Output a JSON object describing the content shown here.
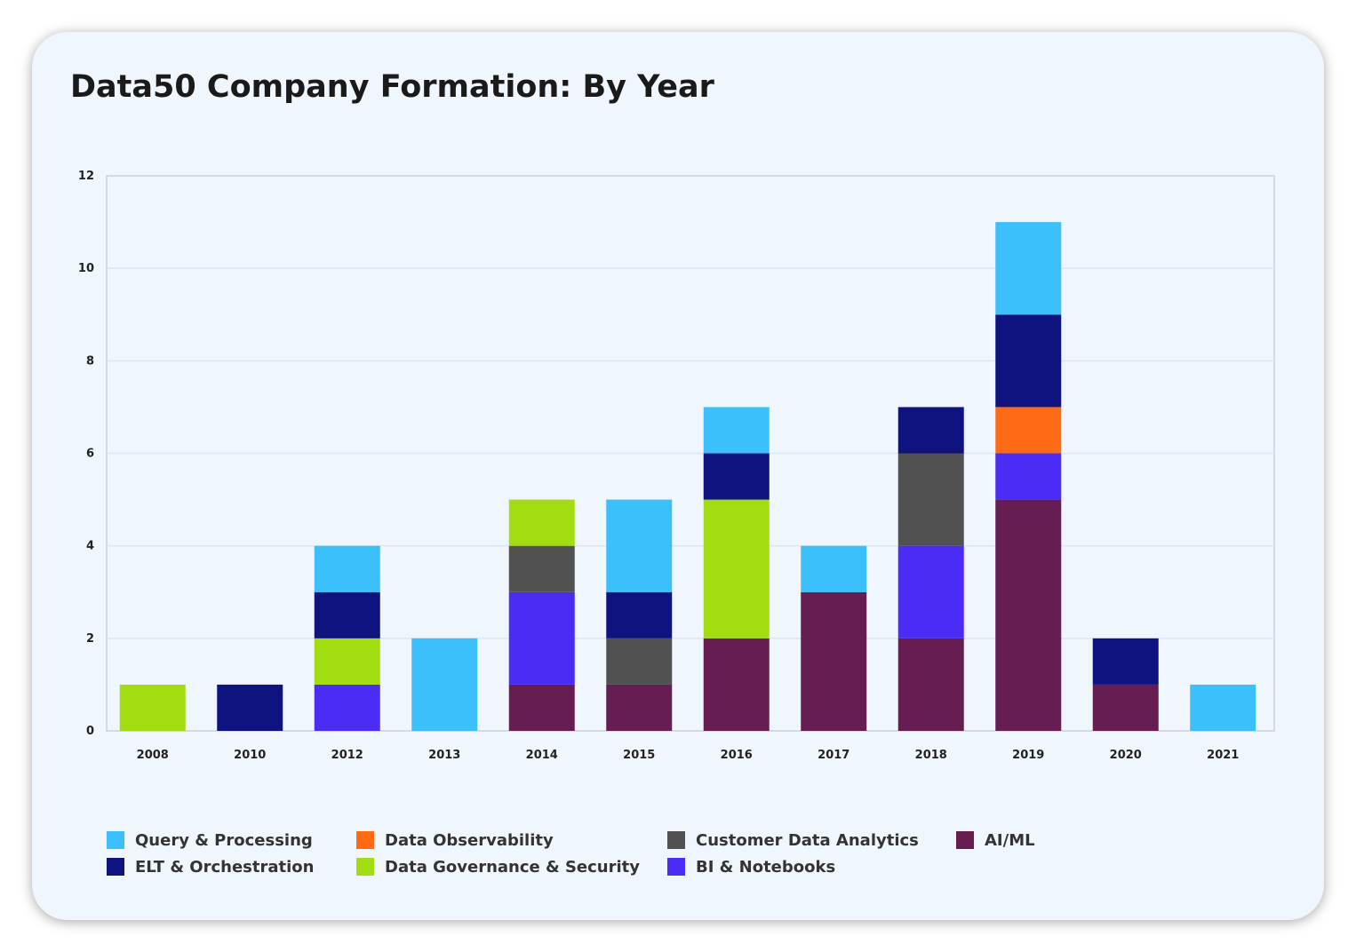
{
  "chart_data": {
    "type": "bar",
    "stacked": true,
    "title": "Data50 Company Formation: By Year",
    "xlabel": "",
    "ylabel": "",
    "ylim": [
      0,
      12
    ],
    "yticks": [
      0,
      2,
      4,
      6,
      8,
      10,
      12
    ],
    "grid": true,
    "legend_position": "bottom",
    "categories": [
      "2008",
      "2010",
      "2012",
      "2013",
      "2014",
      "2015",
      "2016",
      "2017",
      "2018",
      "2019",
      "2020",
      "2021"
    ],
    "series": [
      {
        "name": "AI/ML",
        "color": "#651d52",
        "values": [
          0,
          0,
          0,
          0,
          1,
          1,
          2,
          3,
          2,
          5,
          1,
          0
        ]
      },
      {
        "name": "BI & Notebooks",
        "color": "#4a2cf5",
        "values": [
          0,
          0,
          1,
          0,
          2,
          0,
          0,
          0,
          2,
          1,
          0,
          0
        ]
      },
      {
        "name": "Customer Data Analytics",
        "color": "#515151",
        "values": [
          0,
          0,
          0,
          0,
          1,
          1,
          0,
          0,
          2,
          0,
          0,
          0
        ]
      },
      {
        "name": "Data Governance & Security",
        "color": "#a2dd12",
        "values": [
          1,
          0,
          1,
          0,
          1,
          0,
          3,
          0,
          0,
          0,
          0,
          0
        ]
      },
      {
        "name": "Data Observability",
        "color": "#ff6a14",
        "values": [
          0,
          0,
          0,
          0,
          0,
          0,
          0,
          0,
          0,
          1,
          0,
          0
        ]
      },
      {
        "name": "ELT & Orchestration",
        "color": "#0f1380",
        "values": [
          0,
          1,
          1,
          0,
          0,
          1,
          1,
          0,
          1,
          2,
          1,
          0
        ]
      },
      {
        "name": "Query & Processing",
        "color": "#3cc0fc",
        "values": [
          0,
          0,
          1,
          2,
          0,
          2,
          1,
          1,
          0,
          2,
          0,
          1
        ]
      }
    ],
    "legend_order": [
      "Query & Processing",
      "ELT & Orchestration",
      "Data Observability",
      "Data Governance & Security",
      "Customer Data Analytics",
      "BI & Notebooks",
      "AI/ML"
    ]
  },
  "colors": {
    "card_background": "#eff6fd",
    "gridline": "#dde5ee",
    "axis": "#c9d2dc"
  }
}
